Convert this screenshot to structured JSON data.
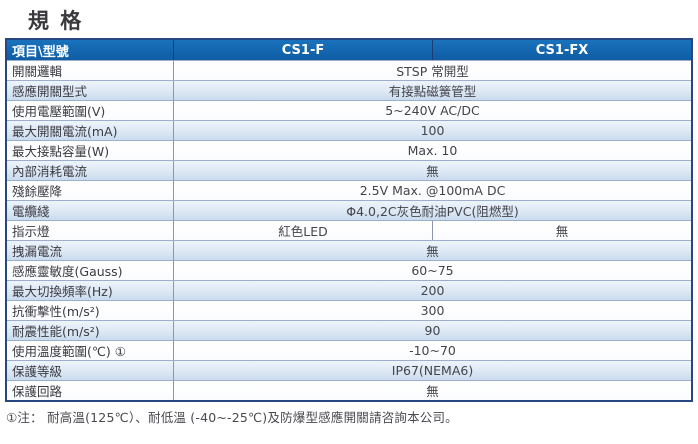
{
  "title": "規 格",
  "colors": {
    "header_bg": "#1365ad",
    "header_text": "#ffffff",
    "alt_row_top": "#edf4fb",
    "alt_row_bottom": "#c9dbee",
    "outer_border": "#26477f",
    "inner_border": "#9daecb"
  },
  "table": {
    "header": {
      "item_col": "項目\\型號",
      "col1": "CS1-F",
      "col2": "CS1-FX"
    },
    "rows": [
      {
        "label": "開關邏輯",
        "span": true,
        "value": "STSP 常開型"
      },
      {
        "label": "感應開關型式",
        "span": true,
        "value": "有接點磁簧管型"
      },
      {
        "label": "使用電壓範圍(V)",
        "span": true,
        "value": "5~240V AC/DC"
      },
      {
        "label": "最大開關電流(mA)",
        "span": true,
        "value": "100"
      },
      {
        "label": "最大接點容量(W)",
        "span": true,
        "value": "Max. 10"
      },
      {
        "label": "內部消耗電流",
        "span": true,
        "value": "無"
      },
      {
        "label": "殘餘壓降",
        "span": true,
        "value": "2.5V Max. @100mA DC"
      },
      {
        "label": "電纜綫",
        "span": true,
        "value": "Φ4.0,2C灰色耐油PVC(阻燃型)"
      },
      {
        "label": "指示燈",
        "span": false,
        "value_col1": "紅色LED",
        "value_col2": "無"
      },
      {
        "label": "拽漏電流",
        "span": true,
        "value": "無"
      },
      {
        "label": "感應靈敏度(Gauss)",
        "span": true,
        "value": "60~75"
      },
      {
        "label": "最大切換頻率(Hz)",
        "span": true,
        "value": "200"
      },
      {
        "label": "抗衝擊性(m/s²)",
        "span": true,
        "value": "300"
      },
      {
        "label": "耐震性能(m/s²)",
        "span": true,
        "value": "90"
      },
      {
        "label": "使用溫度範圍(℃) ①",
        "span": true,
        "value": "-10~70"
      },
      {
        "label": "保護等級",
        "span": true,
        "value": "IP67(NEMA6)"
      },
      {
        "label": "保護回路",
        "span": true,
        "value": "無"
      }
    ]
  },
  "footnote": "①注： 耐高溫(125℃）、耐低溫 (-40~-25℃)及防爆型感應開關請咨詢本公司。"
}
